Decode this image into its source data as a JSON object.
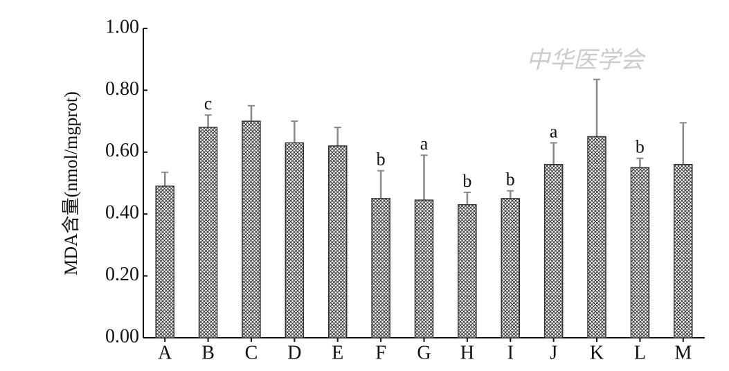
{
  "chart_data": {
    "type": "bar",
    "ylabel": "MDA含量(nmol/mgprot)",
    "watermark": "中华医学会",
    "categories": [
      "A",
      "B",
      "C",
      "D",
      "E",
      "F",
      "G",
      "H",
      "I",
      "J",
      "K",
      "L",
      "M"
    ],
    "values": [
      0.49,
      0.68,
      0.7,
      0.63,
      0.62,
      0.45,
      0.445,
      0.43,
      0.45,
      0.56,
      0.65,
      0.55,
      0.56
    ],
    "errors": [
      0.045,
      0.04,
      0.05,
      0.07,
      0.06,
      0.09,
      0.145,
      0.04,
      0.025,
      0.07,
      0.185,
      0.03,
      0.135
    ],
    "annotations": [
      null,
      "c",
      null,
      null,
      null,
      "b",
      "a",
      "b",
      "b",
      "a",
      null,
      "b",
      null
    ],
    "color": "#333333",
    "error_color": "#888888",
    "ylim": [
      0,
      1
    ],
    "yticks": [
      {
        "value": 0,
        "label": "0.00"
      },
      {
        "value": 0.2,
        "label": "0.20"
      },
      {
        "value": 0.4,
        "label": "0.40"
      },
      {
        "value": 0.6,
        "label": "0.60"
      },
      {
        "value": 0.8,
        "label": "0.80"
      },
      {
        "value": 1,
        "label": "1.00"
      }
    ]
  }
}
